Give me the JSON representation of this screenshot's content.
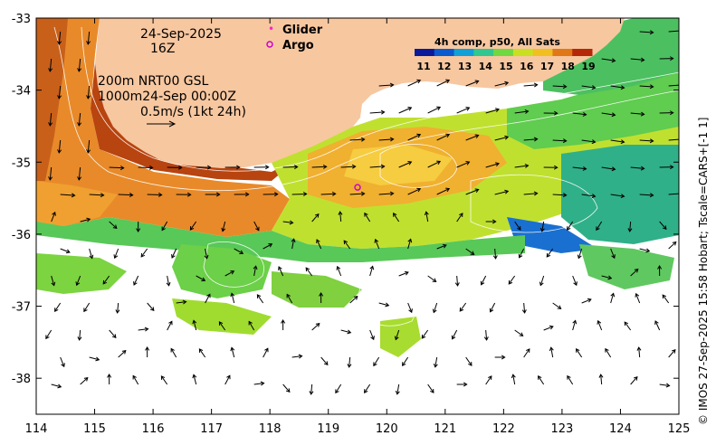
{
  "map": {
    "date_line1": "24-Sep-2025",
    "date_line2": "16Z",
    "contour_line1": "200m  NRT00 GSL",
    "contour_line2": "1000m24-Sep 00:00Z",
    "vector_scale": "0.5m/s (1kt 24h)",
    "legend": {
      "glider_label": "Glider",
      "argo_label": "Argo",
      "glider_color": "#ff22cc",
      "argo_color": "#cc00cc"
    },
    "colorbar": {
      "title": "4h comp, p50, All Sats",
      "ticks": [
        "11",
        "12",
        "13",
        "14",
        "15",
        "16",
        "17",
        "18",
        "19"
      ],
      "colors": [
        "#0a1a9a",
        "#0a5ad0",
        "#10a0d8",
        "#30c890",
        "#70d840",
        "#c8e020",
        "#f0c020",
        "#e07818",
        "#b42808"
      ]
    },
    "land_color": "#f7c7a0",
    "x_ticks": [
      "114",
      "115",
      "116",
      "117",
      "118",
      "119",
      "120",
      "121",
      "122",
      "123",
      "124",
      "125"
    ],
    "y_ticks": [
      "-33",
      "-34",
      "-35",
      "-36",
      "-37",
      "-38"
    ],
    "extent": {
      "lon": [
        114,
        125
      ],
      "lat": [
        -38.5,
        -33
      ]
    },
    "argo_position": {
      "lon": 119.5,
      "lat": -35.35
    },
    "credit": "© IMOS 27-Sep-2025 15:58 Hobart; Tscale=CARS+[-1 1]"
  }
}
